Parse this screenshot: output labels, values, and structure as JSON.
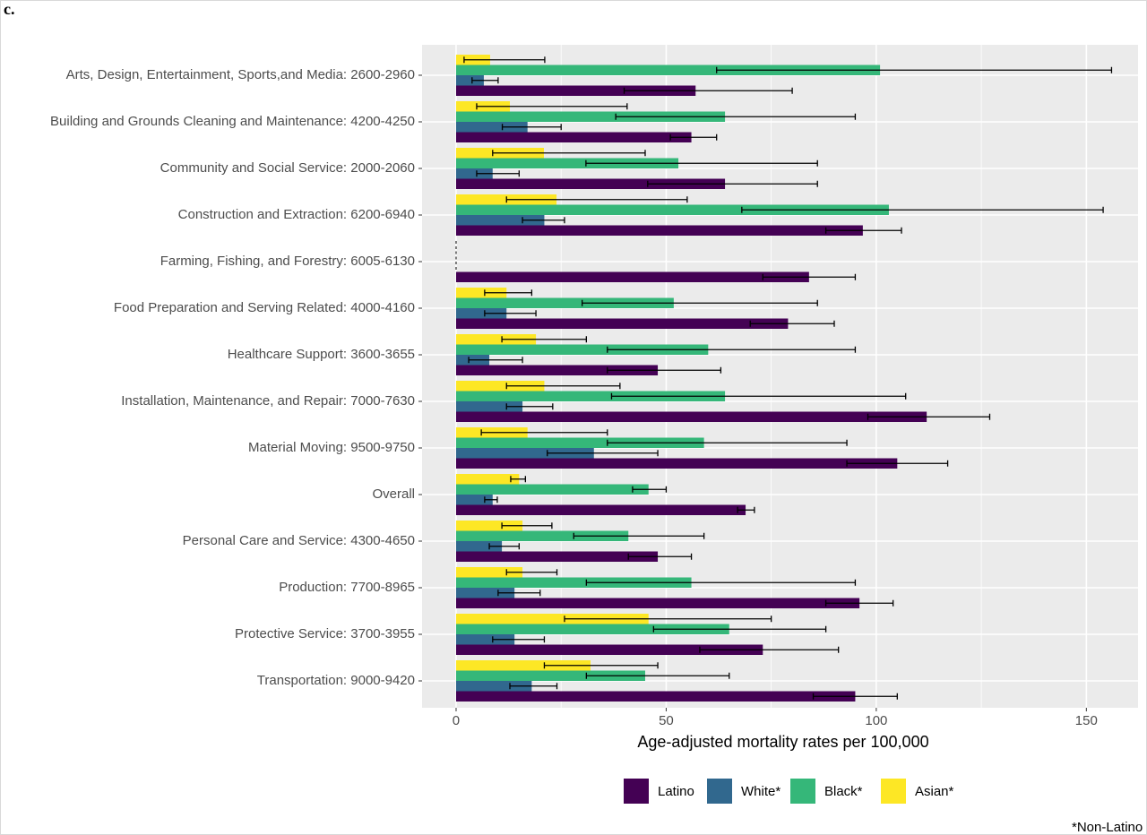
{
  "chart_data": {
    "type": "bar",
    "orientation": "horizontal",
    "panel_label": "c.",
    "xlabel": "Age-adjusted mortality rates per 100,000",
    "footnote": "*Non-Latino",
    "categories": [
      "Arts, Design, Entertainment, Sports,and Media: 2600-2960",
      "Building and Grounds Cleaning and Maintenance: 4200-4250",
      "Community and Social Service: 2000-2060",
      "Construction and Extraction: 6200-6940",
      "Farming, Fishing, and Forestry: 6005-6130",
      "Food Preparation and Serving Related: 4000-4160",
      "Healthcare Support: 3600-3655",
      "Installation, Maintenance, and Repair: 7000-7630",
      "Material Moving: 9500-9750",
      "Overall",
      "Personal Care and Service: 4300-4650",
      "Production: 7700-8965",
      "Protective Service: 3700-3955",
      "Transportation: 9000-9420"
    ],
    "series": [
      {
        "name": "Latino",
        "color": "#440154",
        "values": [
          57,
          56,
          64,
          96.8,
          84,
          79,
          48,
          112,
          105,
          68.9,
          48,
          96,
          73,
          95
        ],
        "ci_low": [
          40,
          51,
          45.6,
          88,
          73,
          70,
          36,
          98,
          93,
          67,
          41,
          88,
          58,
          85
        ],
        "ci_high": [
          80,
          62,
          86,
          106,
          95,
          90,
          63,
          127,
          117,
          71,
          56,
          104,
          91,
          105
        ]
      },
      {
        "name": "White*",
        "color": "#31688e",
        "values": [
          6.6,
          17,
          8.7,
          21,
          0,
          12,
          7.9,
          15.8,
          32.8,
          8.7,
          10.9,
          13.9,
          13.9,
          18
        ],
        "ci_low": [
          3.8,
          11,
          4.9,
          15.8,
          null,
          6.8,
          3,
          12,
          21.7,
          6.8,
          7.9,
          10,
          8.7,
          12.8
        ],
        "ci_high": [
          10,
          25,
          15,
          25.8,
          null,
          19,
          15.8,
          23,
          48,
          9.8,
          15,
          20,
          21,
          24
        ]
      },
      {
        "name": "Black*",
        "color": "#35b779",
        "values": [
          100.9,
          64,
          52.9,
          103,
          0,
          51.8,
          60,
          64,
          59,
          45.8,
          41,
          56,
          65,
          45
        ],
        "ci_low": [
          62,
          38,
          30.9,
          68,
          null,
          30,
          36,
          37,
          36,
          42,
          28,
          31,
          47,
          31
        ],
        "ci_high": [
          156,
          95,
          86,
          154,
          null,
          86,
          95,
          107,
          93,
          50,
          59,
          95,
          88,
          65
        ]
      },
      {
        "name": "Asian*",
        "color": "#fde725",
        "values": [
          8.1,
          12.8,
          20.9,
          23.9,
          0,
          12,
          19,
          21,
          17,
          15,
          15.8,
          15.8,
          45.8,
          32
        ],
        "ci_low": [
          1.9,
          4.9,
          8.7,
          12,
          null,
          6.8,
          10.9,
          12,
          6,
          13,
          10.9,
          12,
          25.8,
          21
        ],
        "ci_high": [
          21.1,
          40.7,
          45,
          55,
          null,
          18,
          31,
          39,
          36,
          16.5,
          22.8,
          24,
          75,
          48
        ]
      }
    ],
    "xlim": [
      -8.1,
      162.3
    ],
    "xticks": [
      0,
      50,
      100,
      150
    ],
    "minor_xticks": [
      25,
      75,
      125
    ],
    "grid": true,
    "legend": "bottom"
  }
}
